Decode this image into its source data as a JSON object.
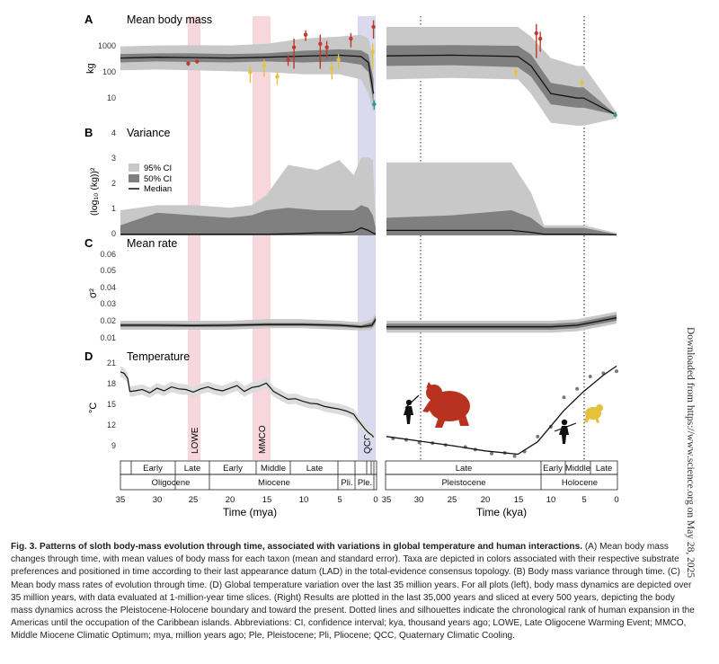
{
  "figure": {
    "panels": {
      "A": {
        "letter": "A",
        "title": "Mean body mass",
        "ylabel": "kg",
        "ticks": [
          "1000",
          "100",
          "10"
        ]
      },
      "B": {
        "letter": "B",
        "title": "Variance",
        "ylabel": "(log₁₀ (kg))²",
        "ticks": [
          "4",
          "3",
          "2",
          "1",
          "0"
        ],
        "legend": {
          "ci95": "95% CI",
          "ci50": "50% CI",
          "median": "Median"
        }
      },
      "C": {
        "letter": "C",
        "title": "Mean rate",
        "ylabel": "σ²",
        "ticks": [
          "0.06",
          "0.05",
          "0.04",
          "0.03",
          "0.02",
          "0.01"
        ]
      },
      "D": {
        "letter": "D",
        "title": "Temperature",
        "ylabel": "°C",
        "ticks": [
          "21",
          "18",
          "15",
          "12",
          "9"
        ]
      }
    },
    "events": [
      {
        "label": "LOWE",
        "color": "#f4c9cf"
      },
      {
        "label": "MMCO",
        "color": "#f4c9cf"
      },
      {
        "label": "QCC",
        "color": "#cfd1ea"
      }
    ],
    "timescale_left": {
      "epochs": [
        "Early",
        "Late",
        "Early",
        "Middle",
        "Late"
      ],
      "periods": [
        "Oligocene",
        "Miocene",
        "Pli.",
        "Ple."
      ],
      "ticks": [
        "35",
        "30",
        "25",
        "20",
        "15",
        "10",
        "5",
        "0"
      ],
      "xlabel": "Time (mya)"
    },
    "timescale_right": {
      "epochs": [
        "Late",
        "Early",
        "Middle",
        "Late"
      ],
      "periods": [
        "Pleistocene",
        "Holocene"
      ],
      "ticks": [
        "35",
        "30",
        "25",
        "20",
        "15",
        "10",
        "5",
        "0"
      ],
      "xlabel": "Time (kya)"
    },
    "colors": {
      "ci95": "#c8c8c8",
      "ci50": "#808080",
      "median": "#111111",
      "taxon_red": "#c0392b",
      "taxon_yellow": "#e6c23a",
      "taxon_teal": "#2a9d8f",
      "temp_dot": "#7a7a7a"
    }
  },
  "chart_data": [
    {
      "type": "area",
      "panel": "A-left",
      "title": "Mean body mass",
      "ylabel": "kg",
      "yscale": "log",
      "xlabel": "Time (mya)",
      "xlim": [
        35,
        0
      ],
      "ylim": [
        5,
        3000
      ],
      "x": [
        35,
        30,
        25,
        20,
        15,
        10,
        5,
        2,
        1,
        0.3
      ],
      "median": [
        200,
        210,
        205,
        200,
        210,
        225,
        240,
        220,
        150,
        20
      ],
      "ci50_low": [
        150,
        160,
        155,
        150,
        160,
        150,
        160,
        130,
        80,
        10
      ],
      "ci50_high": [
        260,
        270,
        270,
        260,
        270,
        320,
        350,
        330,
        250,
        50
      ],
      "ci95_low": [
        90,
        95,
        90,
        85,
        80,
        70,
        70,
        50,
        20,
        6
      ],
      "ci95_high": [
        420,
        450,
        460,
        450,
        500,
        700,
        800,
        900,
        700,
        200
      ],
      "taxa": [
        {
          "x": 25.7,
          "y": 140,
          "err": 20,
          "group": "red"
        },
        {
          "x": 24.5,
          "y": 160,
          "err": 20,
          "group": "red"
        },
        {
          "x": 17.2,
          "y": 80,
          "err": 40,
          "group": "yellow"
        },
        {
          "x": 15.3,
          "y": 120,
          "err": 60,
          "group": "yellow"
        },
        {
          "x": 13.5,
          "y": 60,
          "err": 25,
          "group": "yellow"
        },
        {
          "x": 12.0,
          "y": 180,
          "err": 60,
          "group": "red"
        },
        {
          "x": 11.2,
          "y": 400,
          "err": 300,
          "group": "red"
        },
        {
          "x": 9.6,
          "y": 900,
          "err": 300,
          "group": "red"
        },
        {
          "x": 7.6,
          "y": 500,
          "err": 400,
          "group": "red"
        },
        {
          "x": 6.7,
          "y": 400,
          "err": 200,
          "group": "red"
        },
        {
          "x": 6.0,
          "y": 100,
          "err": 50,
          "group": "yellow"
        },
        {
          "x": 5.1,
          "y": 180,
          "err": 80,
          "group": "yellow"
        },
        {
          "x": 3.4,
          "y": 700,
          "err": 300,
          "group": "red"
        },
        {
          "x": 0.4,
          "y": 300,
          "err": 200,
          "group": "yellow"
        },
        {
          "x": 0.3,
          "y": 1500,
          "err": 800,
          "group": "red"
        },
        {
          "x": 0.2,
          "y": 10,
          "err": 3,
          "group": "teal"
        }
      ]
    },
    {
      "type": "area",
      "panel": "A-right",
      "title": "Mean body mass",
      "ylabel": "kg",
      "yscale": "log",
      "xlabel": "Time (kya)",
      "xlim": [
        35,
        0
      ],
      "ylim": [
        5,
        3000
      ],
      "x": [
        35,
        25,
        15,
        13,
        10,
        6,
        5,
        0
      ],
      "median": [
        230,
        240,
        220,
        120,
        20,
        15,
        15,
        5
      ],
      "ci50_low": [
        120,
        125,
        110,
        60,
        10,
        8,
        8,
        5
      ],
      "ci50_high": [
        450,
        460,
        440,
        250,
        40,
        30,
        30,
        5
      ],
      "ci95_low": [
        50,
        55,
        50,
        20,
        3,
        2.5,
        2.5,
        4
      ],
      "ci95_high": [
        1500,
        1500,
        1500,
        800,
        200,
        120,
        120,
        6
      ],
      "taxa": [
        {
          "x": 15.3,
          "y": 80,
          "err": 20,
          "group": "yellow"
        },
        {
          "x": 12.2,
          "y": 1000,
          "err": 800,
          "group": "red"
        },
        {
          "x": 11.6,
          "y": 700,
          "err": 400,
          "group": "red"
        },
        {
          "x": 5.3,
          "y": 40,
          "err": 10,
          "group": "yellow"
        },
        {
          "x": 0.2,
          "y": 5,
          "err": 1,
          "group": "teal"
        }
      ]
    },
    {
      "type": "area",
      "panel": "B-left",
      "title": "Variance",
      "ylabel": "(log10 (kg))^2",
      "xlabel": "Time (mya)",
      "xlim": [
        35,
        0
      ],
      "ylim": [
        0,
        4
      ],
      "x": [
        35,
        30,
        25,
        20,
        17,
        15,
        12,
        8,
        5,
        3,
        2,
        1,
        0.4,
        0
      ],
      "median": [
        0.05,
        0.05,
        0.05,
        0.05,
        0.05,
        0.05,
        0.06,
        0.1,
        0.1,
        0.15,
        0.3,
        0.2,
        0.1,
        0.05
      ],
      "ci50_low": [
        0,
        0,
        0,
        0,
        0,
        0,
        0,
        0,
        0,
        0,
        0,
        0,
        0,
        0
      ],
      "ci50_high": [
        0.4,
        0.9,
        0.8,
        0.7,
        0.8,
        1.0,
        1.1,
        1.0,
        1.0,
        1.0,
        1.2,
        1.1,
        0.8,
        0.3
      ],
      "ci95_low": [
        0,
        0,
        0,
        0,
        0,
        0,
        0,
        0,
        0,
        0,
        0,
        0,
        0,
        0
      ],
      "ci95_high": [
        1.0,
        1.2,
        1.2,
        1.1,
        1.2,
        1.6,
        2.8,
        2.6,
        3.0,
        2.4,
        3.1,
        3.1,
        3.0,
        0.5
      ]
    },
    {
      "type": "area",
      "panel": "B-right",
      "title": "Variance",
      "ylabel": "(log10 (kg))^2",
      "xlabel": "Time (kya)",
      "xlim": [
        35,
        0
      ],
      "ylim": [
        0,
        4
      ],
      "x": [
        35,
        25,
        16,
        13,
        11,
        6,
        5,
        0
      ],
      "median": [
        0.2,
        0.2,
        0.2,
        0.12,
        0.05,
        0.05,
        0.05,
        0.02
      ],
      "ci50_low": [
        0,
        0,
        0,
        0,
        0,
        0,
        0,
        0
      ],
      "ci50_high": [
        0.7,
        0.8,
        1.0,
        0.7,
        0.3,
        0.3,
        0.3,
        0.05
      ],
      "ci95_low": [
        0,
        0,
        0,
        0,
        0,
        0,
        0,
        0
      ],
      "ci95_high": [
        2.9,
        2.9,
        2.9,
        1.7,
        0.4,
        0.4,
        0.4,
        0.1
      ]
    },
    {
      "type": "area",
      "panel": "C-left",
      "title": "Mean rate",
      "ylabel": "sigma^2",
      "xlabel": "Time (mya)",
      "xlim": [
        35,
        0
      ],
      "ylim": [
        0.005,
        0.065
      ],
      "x": [
        35,
        30,
        25,
        20,
        15,
        10,
        5,
        2,
        0.5,
        0
      ],
      "median": [
        0.017,
        0.017,
        0.0168,
        0.017,
        0.0175,
        0.0175,
        0.017,
        0.016,
        0.017,
        0.021
      ],
      "ci50_low": [
        0.016,
        0.016,
        0.0158,
        0.016,
        0.0165,
        0.0165,
        0.016,
        0.015,
        0.0155,
        0.019
      ],
      "ci50_high": [
        0.018,
        0.018,
        0.0178,
        0.018,
        0.0185,
        0.0185,
        0.018,
        0.017,
        0.019,
        0.023
      ],
      "ci95_low": [
        0.014,
        0.014,
        0.014,
        0.014,
        0.015,
        0.015,
        0.014,
        0.0135,
        0.014,
        0.017
      ],
      "ci95_high": [
        0.02,
        0.02,
        0.02,
        0.02,
        0.021,
        0.021,
        0.02,
        0.019,
        0.021,
        0.025
      ]
    },
    {
      "type": "area",
      "panel": "C-right",
      "title": "Mean rate",
      "ylabel": "sigma^2",
      "xlabel": "Time (kya)",
      "xlim": [
        35,
        0
      ],
      "ylim": [
        0.005,
        0.065
      ],
      "x": [
        35,
        25,
        15,
        10,
        6,
        0
      ],
      "median": [
        0.016,
        0.016,
        0.016,
        0.016,
        0.017,
        0.022
      ],
      "ci50_low": [
        0.014,
        0.014,
        0.014,
        0.014,
        0.015,
        0.02
      ],
      "ci50_high": [
        0.018,
        0.018,
        0.018,
        0.018,
        0.019,
        0.024
      ],
      "ci95_low": [
        0.012,
        0.012,
        0.012,
        0.012,
        0.013,
        0.018
      ],
      "ci95_high": [
        0.02,
        0.02,
        0.02,
        0.02,
        0.021,
        0.026
      ]
    },
    {
      "type": "line",
      "panel": "D-left",
      "title": "Temperature",
      "ylabel": "°C",
      "xlabel": "Time (mya)",
      "xlim": [
        35,
        0
      ],
      "ylim": [
        7,
        22
      ],
      "x": [
        35,
        34.5,
        34,
        33.7,
        33,
        32,
        31,
        30,
        29,
        28,
        27,
        26,
        25,
        24,
        23,
        22,
        21,
        20,
        19,
        18,
        17,
        16,
        15,
        14,
        13,
        12,
        11,
        10,
        9,
        8,
        7,
        6,
        5,
        4,
        3,
        2.5,
        2,
        1.5,
        1,
        0.5,
        0.3
      ],
      "y": [
        20.5,
        20.3,
        19.5,
        17.5,
        17.6,
        17.8,
        17.3,
        18.0,
        17.6,
        18.2,
        17.9,
        17.8,
        17.4,
        17.9,
        18.2,
        17.8,
        17.6,
        18.0,
        18.4,
        17.5,
        18.1,
        18.3,
        18.8,
        17.5,
        16.9,
        16.3,
        16.4,
        16.0,
        15.7,
        15.6,
        15.2,
        15.0,
        14.8,
        14.5,
        14.0,
        13.2,
        12.5,
        11.8,
        11.2,
        10.8,
        10.5
      ]
    },
    {
      "type": "scatter",
      "panel": "D-right",
      "title": "Temperature",
      "ylabel": "°C",
      "xlabel": "Time (kya)",
      "xlim": [
        35,
        0
      ],
      "ylim": [
        7,
        22
      ],
      "points_x": [
        34,
        32,
        30,
        28,
        26,
        23,
        21.5,
        19,
        17,
        15.5,
        14,
        12,
        10,
        8,
        6,
        4,
        2,
        0
      ],
      "points_y": [
        10.3,
        10.1,
        9.7,
        9.6,
        9.3,
        9.0,
        8.6,
        8.0,
        8.1,
        7.6,
        8.3,
        10.6,
        12.1,
        16.6,
        17.9,
        19.8,
        20.3,
        20.6
      ],
      "fit_x": [
        35,
        30,
        25,
        20,
        15,
        12,
        10,
        8,
        5,
        2,
        0
      ],
      "fit_y": [
        10.6,
        9.9,
        9.2,
        8.4,
        7.9,
        9.8,
        12.2,
        14.6,
        17.5,
        20.0,
        21.4
      ]
    }
  ],
  "annotations": {
    "dotted_lines_kya": [
      30,
      5
    ]
  },
  "caption": {
    "lead": "Fig. 3. Patterns of sloth body-mass evolution through time, associated with variations in global temperature and human interactions.",
    "body": " (A) Mean body mass changes through time, with mean values of body mass for each taxon (mean and standard error). Taxa are depicted in colors associated with their respective substrate preferences and positioned in time according to their last appearance datum (LAD) in the total-evidence consensus topology. (B) Body mass variance through time. (C) Mean body mass rates of evolution through time. (D) Global temperature variation over the last 35 million years. For all plots (left), body mass dynamics are depicted over 35 million years, with data evaluated at 1-million-year time slices. (Right) Results are plotted in the last 35,000 years and sliced at every 500 years, depicting the body mass dynamics across the Pleistocene-Holocene boundary and toward the present. Dotted lines and silhouettes indicate the chronological rank of human expansion in the Americas until the occupation of the Caribbean islands. Abbreviations: CI, confidence interval; kya, thousand years ago; LOWE, Late Oligocene Warming Event; MMCO, Middle Miocene Climatic Optimum; mya, million years ago; Ple, Pleistocene; Pli, Pliocene; QCC, Quaternary Climatic Cooling."
  },
  "sidebar_note": "Downloaded from https://www.science.org on May 28, 2025"
}
